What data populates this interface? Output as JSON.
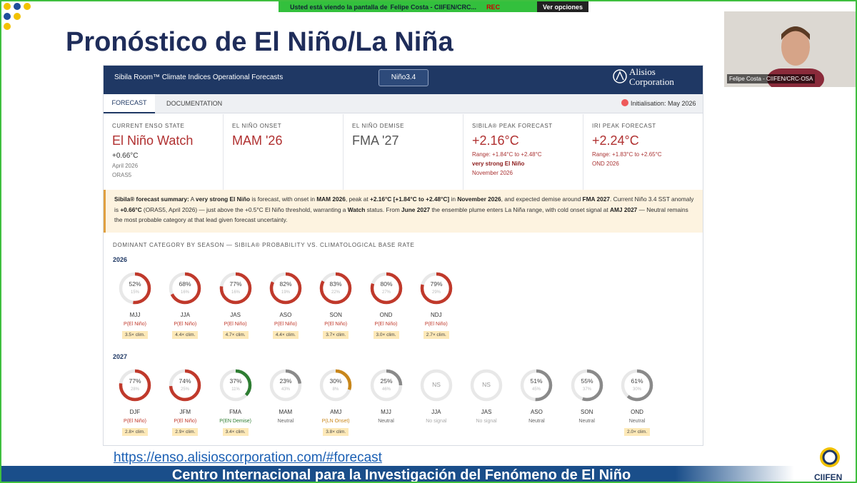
{
  "zoom": {
    "banner_text": "Usted está viendo la pantalla de",
    "presenter": "Felipe Costa - CIIFEN/CRC...",
    "rec": "REC",
    "options": "Ver opciones",
    "participant": "Felipe Costa - CIIFEN/CRC-OSA"
  },
  "slide": {
    "title": "Pronóstico de El Niño/La Niña",
    "link": "https://enso.alisioscorporation.com/#forecast",
    "footer": "Centro Internacional para la Investigación del Fenómeno de El Niño",
    "logo": "CIIFEN"
  },
  "dashboard": {
    "app_title": "Sibila Room™ Climate Indices Operational Forecasts",
    "index": "Niño3.4",
    "brand": [
      "Alisios",
      "Corporation"
    ],
    "tabs": [
      "FORECAST",
      "DOCUMENTATION"
    ],
    "initialisation": "Initialisation: May 2026",
    "cards": [
      {
        "label": "CURRENT ENSO STATE",
        "value": "El Niño Watch",
        "color": "#b03030",
        "lines": [
          "+0.66°C",
          "April 2026",
          "ORAS5"
        ]
      },
      {
        "label": "EL NIÑO ONSET",
        "value": "MAM '26",
        "color": "#b03030",
        "lines": []
      },
      {
        "label": "EL NIÑO DEMISE",
        "value": "FMA '27",
        "color": "#555555",
        "lines": []
      },
      {
        "label": "SIBILA® PEAK FORECAST",
        "value": "+2.16°C",
        "color": "#b03030",
        "lines": [
          "Range: +1.84°C to +2.48°C",
          "very strong El Niño",
          "November 2026"
        ]
      },
      {
        "label": "IRI PEAK FORECAST",
        "value": "+2.24°C",
        "color": "#b03030",
        "lines": [
          "Range: +1.83°C to +2.65°C",
          "OND 2026"
        ]
      }
    ],
    "summary": [
      {
        "text": "Sibila® forecast summary:",
        "bold": true
      },
      {
        "text": " A ",
        "bold": false
      },
      {
        "text": "very strong El Niño",
        "bold": true
      },
      {
        "text": " is forecast, with onset in ",
        "bold": false
      },
      {
        "text": "MAM 2026",
        "bold": true
      },
      {
        "text": ", peak at ",
        "bold": false
      },
      {
        "text": "+2.16°C [+1.84°C to +2.48°C]",
        "bold": true
      },
      {
        "text": " in ",
        "bold": false
      },
      {
        "text": "November 2026",
        "bold": true
      },
      {
        "text": ", and expected demise around ",
        "bold": false
      },
      {
        "text": "FMA 2027",
        "bold": true
      },
      {
        "text": ". Current Niño 3.4 SST anomaly is ",
        "bold": false
      },
      {
        "text": "+0.66°C",
        "bold": true
      },
      {
        "text": " (ORAS5, April 2026) — just above the +0.5°C El Niño threshold, warranting a ",
        "bold": false
      },
      {
        "text": "Watch",
        "bold": true
      },
      {
        "text": " status. From ",
        "bold": false
      },
      {
        "text": "June 2027",
        "bold": true
      },
      {
        "text": " the ensemble plume enters La Niña range, with cold onset signal at ",
        "bold": false
      },
      {
        "text": "AMJ 2027",
        "bold": true
      },
      {
        "text": " — Neutral remains the most probable category at that lead given forecast uncertainty.",
        "bold": false
      }
    ],
    "section_title": "DOMINANT CATEGORY BY SEASON — SIBILA® PROBABILITY VS. CLIMATOLOGICAL BASE RATE",
    "years": [
      {
        "year": "2026",
        "items": [
          {
            "season": "MJJ",
            "value": 52,
            "label": "52%",
            "base": "15%",
            "category": "P(El Niño)",
            "ratio": "3.5× clim.",
            "color": "#c0392b"
          },
          {
            "season": "JJA",
            "value": 68,
            "label": "68%",
            "base": "16%",
            "category": "P(El Niño)",
            "ratio": "4.4× clim.",
            "color": "#c0392b"
          },
          {
            "season": "JAS",
            "value": 77,
            "label": "77%",
            "base": "16%",
            "category": "P(El Niño)",
            "ratio": "4.7× clim.",
            "color": "#c0392b"
          },
          {
            "season": "ASO",
            "value": 82,
            "label": "82%",
            "base": "19%",
            "category": "P(El Niño)",
            "ratio": "4.4× clim.",
            "color": "#c0392b"
          },
          {
            "season": "SON",
            "value": 83,
            "label": "83%",
            "base": "22%",
            "category": "P(El Niño)",
            "ratio": "3.7× clim.",
            "color": "#c0392b"
          },
          {
            "season": "OND",
            "value": 80,
            "label": "80%",
            "base": "27%",
            "category": "P(El Niño)",
            "ratio": "3.0× clim.",
            "color": "#c0392b"
          },
          {
            "season": "NDJ",
            "value": 79,
            "label": "79%",
            "base": "29%",
            "category": "P(El Niño)",
            "ratio": "2.7× clim.",
            "color": "#c0392b"
          }
        ]
      },
      {
        "year": "2027",
        "items": [
          {
            "season": "DJF",
            "value": 77,
            "label": "77%",
            "base": "28%",
            "category": "P(El Niño)",
            "ratio": "2.8× clim.",
            "color": "#c0392b"
          },
          {
            "season": "JFM",
            "value": 74,
            "label": "74%",
            "base": "25%",
            "category": "P(El Niño)",
            "ratio": "2.9× clim.",
            "color": "#c0392b"
          },
          {
            "season": "FMA",
            "value": 37,
            "label": "37%",
            "base": "11%",
            "category": "P(EN Demise)",
            "ratio": "3.4× clim.",
            "color": "#2e7d32"
          },
          {
            "season": "MAM",
            "value": 23,
            "label": "23%",
            "base": "43%",
            "category": "Neutral",
            "color": "#8a8a8a"
          },
          {
            "season": "AMJ",
            "value": 30,
            "label": "30%",
            "base": "8%",
            "category": "P(LN Onset)",
            "ratio": "3.8× clim.",
            "color": "#c8861a"
          },
          {
            "season": "MJJ",
            "value": 25,
            "label": "25%",
            "base": "46%",
            "category": "Neutral",
            "color": "#8a8a8a"
          },
          {
            "season": "JJA",
            "value": null,
            "label": "NS",
            "category": "No signal",
            "color": "#aaaaaa"
          },
          {
            "season": "JAS",
            "value": null,
            "label": "NS",
            "category": "No signal",
            "color": "#aaaaaa"
          },
          {
            "season": "ASO",
            "value": 51,
            "label": "51%",
            "base": "45%",
            "category": "Neutral",
            "color": "#8a8a8a"
          },
          {
            "season": "SON",
            "value": 55,
            "label": "55%",
            "base": "37%",
            "category": "Neutral",
            "color": "#8a8a8a"
          },
          {
            "season": "OND",
            "value": 61,
            "label": "61%",
            "base": "30%",
            "category": "Neutral",
            "ratio": "2.0× clim.",
            "color": "#8a8a8a"
          }
        ]
      }
    ]
  }
}
